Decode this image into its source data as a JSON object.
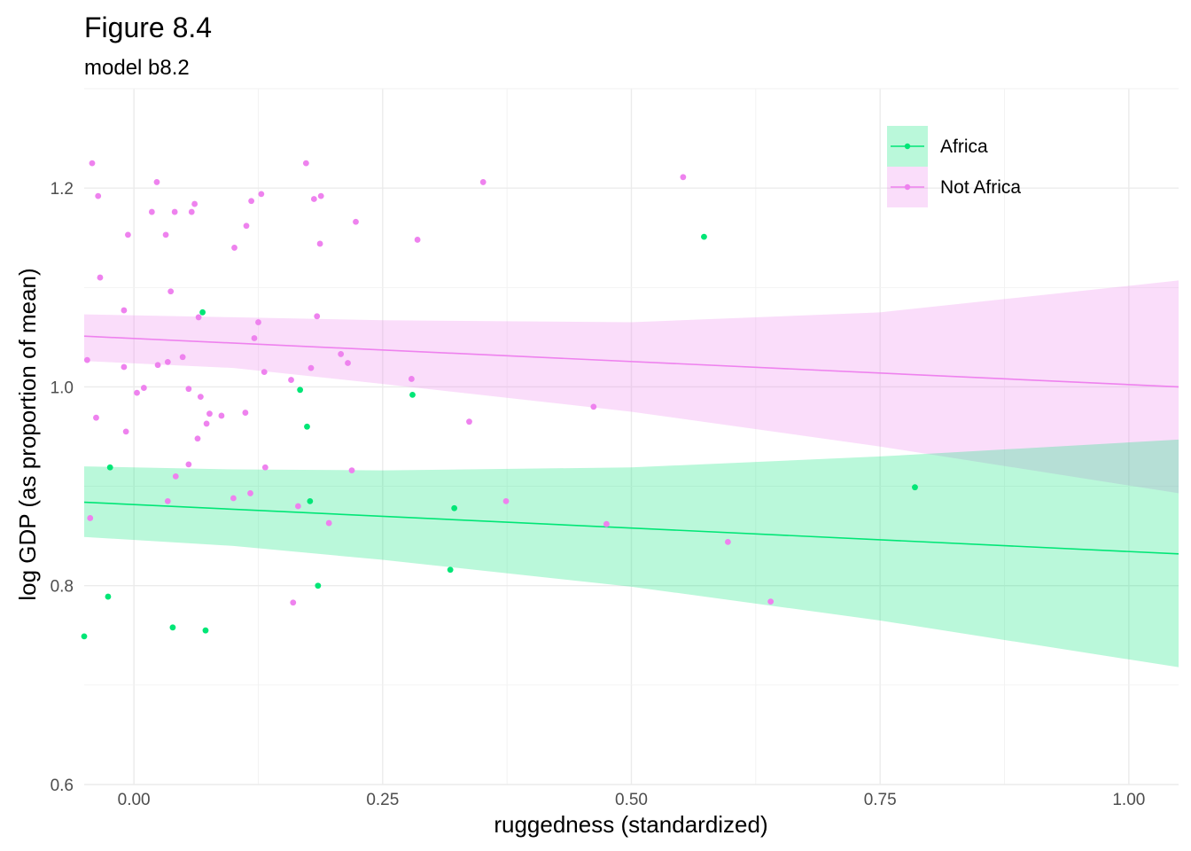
{
  "chart_data": {
    "type": "scatter",
    "title": "Figure 8.4",
    "subtitle": "model b8.2",
    "xlabel": "ruggedness (standardized)",
    "ylabel": "log GDP (as proportion of mean)",
    "xlim": [
      -0.05,
      1.05
    ],
    "ylim": [
      0.6,
      1.3
    ],
    "x_ticks": [
      0.0,
      0.25,
      0.5,
      0.75,
      1.0
    ],
    "x_tick_labels": [
      "0.00",
      "0.25",
      "0.50",
      "0.75",
      "1.00"
    ],
    "y_ticks": [
      0.6,
      0.8,
      1.0,
      1.2
    ],
    "y_tick_labels": [
      "0.6",
      "0.8",
      "1.0",
      "1.2"
    ],
    "grid": true,
    "legend_position": "top-right",
    "series": [
      {
        "name": "Not Africa",
        "color": "#ee82ee",
        "band_color": "#ee82ee",
        "line": [
          [
            -0.05,
            1.051
          ],
          [
            1.05,
            1.0
          ]
        ],
        "band_upper": [
          [
            -0.05,
            1.073
          ],
          [
            0.1,
            1.07
          ],
          [
            0.25,
            1.067
          ],
          [
            0.5,
            1.065
          ],
          [
            0.75,
            1.075
          ],
          [
            1.05,
            1.107
          ]
        ],
        "band_lower": [
          [
            -0.05,
            1.026
          ],
          [
            0.1,
            1.019
          ],
          [
            0.25,
            1.003
          ],
          [
            0.5,
            0.975
          ],
          [
            0.75,
            0.94
          ],
          [
            1.05,
            0.893
          ]
        ],
        "points": [
          [
            -0.042,
            1.225
          ],
          [
            -0.036,
            1.192
          ],
          [
            -0.034,
            1.11
          ],
          [
            -0.047,
            1.027
          ],
          [
            -0.038,
            0.969
          ],
          [
            -0.044,
            0.868
          ],
          [
            -0.006,
            1.153
          ],
          [
            -0.01,
            1.077
          ],
          [
            -0.01,
            1.02
          ],
          [
            -0.008,
            0.955
          ],
          [
            0.003,
            0.994
          ],
          [
            0.01,
            0.999
          ],
          [
            0.018,
            1.176
          ],
          [
            0.023,
            1.206
          ],
          [
            0.024,
            1.022
          ],
          [
            0.032,
            1.153
          ],
          [
            0.034,
            1.025
          ],
          [
            0.034,
            0.885
          ],
          [
            0.037,
            1.096
          ],
          [
            0.041,
            1.176
          ],
          [
            0.042,
            0.91
          ],
          [
            0.049,
            1.03
          ],
          [
            0.055,
            0.998
          ],
          [
            0.055,
            0.922
          ],
          [
            0.058,
            1.176
          ],
          [
            0.061,
            1.184
          ],
          [
            0.064,
            0.948
          ],
          [
            0.065,
            1.07
          ],
          [
            0.067,
            0.99
          ],
          [
            0.073,
            0.963
          ],
          [
            0.076,
            0.973
          ],
          [
            0.088,
            0.971
          ],
          [
            0.1,
            0.888
          ],
          [
            0.101,
            1.14
          ],
          [
            0.112,
            0.974
          ],
          [
            0.113,
            1.162
          ],
          [
            0.117,
            0.893
          ],
          [
            0.118,
            1.187
          ],
          [
            0.121,
            1.049
          ],
          [
            0.125,
            1.065
          ],
          [
            0.128,
            1.194
          ],
          [
            0.131,
            1.015
          ],
          [
            0.132,
            0.919
          ],
          [
            0.158,
            1.007
          ],
          [
            0.16,
            0.783
          ],
          [
            0.165,
            0.88
          ],
          [
            0.173,
            1.225
          ],
          [
            0.178,
            1.019
          ],
          [
            0.181,
            1.189
          ],
          [
            0.184,
            1.071
          ],
          [
            0.187,
            1.144
          ],
          [
            0.188,
            1.192
          ],
          [
            0.196,
            0.863
          ],
          [
            0.208,
            1.033
          ],
          [
            0.215,
            1.024
          ],
          [
            0.219,
            0.916
          ],
          [
            0.223,
            1.166
          ],
          [
            0.279,
            1.008
          ],
          [
            0.285,
            1.148
          ],
          [
            0.337,
            0.965
          ],
          [
            0.351,
            1.206
          ],
          [
            0.374,
            0.885
          ],
          [
            0.462,
            0.98
          ],
          [
            0.475,
            0.862
          ],
          [
            0.552,
            1.211
          ],
          [
            0.597,
            0.844
          ],
          [
            0.64,
            0.784
          ]
        ]
      },
      {
        "name": "Africa",
        "color": "#00e676",
        "band_color": "#00e676",
        "line": [
          [
            -0.05,
            0.884
          ],
          [
            1.05,
            0.832
          ]
        ],
        "band_upper": [
          [
            -0.05,
            0.92
          ],
          [
            0.1,
            0.917
          ],
          [
            0.25,
            0.916
          ],
          [
            0.5,
            0.919
          ],
          [
            0.75,
            0.93
          ],
          [
            1.05,
            0.947
          ]
        ],
        "band_lower": [
          [
            -0.05,
            0.849
          ],
          [
            0.1,
            0.84
          ],
          [
            0.25,
            0.826
          ],
          [
            0.5,
            0.799
          ],
          [
            0.75,
            0.765
          ],
          [
            1.05,
            0.718
          ]
        ],
        "points": [
          [
            -0.05,
            0.749
          ],
          [
            -0.026,
            0.789
          ],
          [
            -0.024,
            0.919
          ],
          [
            0.039,
            0.758
          ],
          [
            0.069,
            1.075
          ],
          [
            0.072,
            0.755
          ],
          [
            0.167,
            0.997
          ],
          [
            0.174,
            0.96
          ],
          [
            0.177,
            0.885
          ],
          [
            0.185,
            0.8
          ],
          [
            0.28,
            0.992
          ],
          [
            0.318,
            0.816
          ],
          [
            0.322,
            0.878
          ],
          [
            0.573,
            1.151
          ],
          [
            0.785,
            0.899
          ]
        ]
      }
    ]
  }
}
